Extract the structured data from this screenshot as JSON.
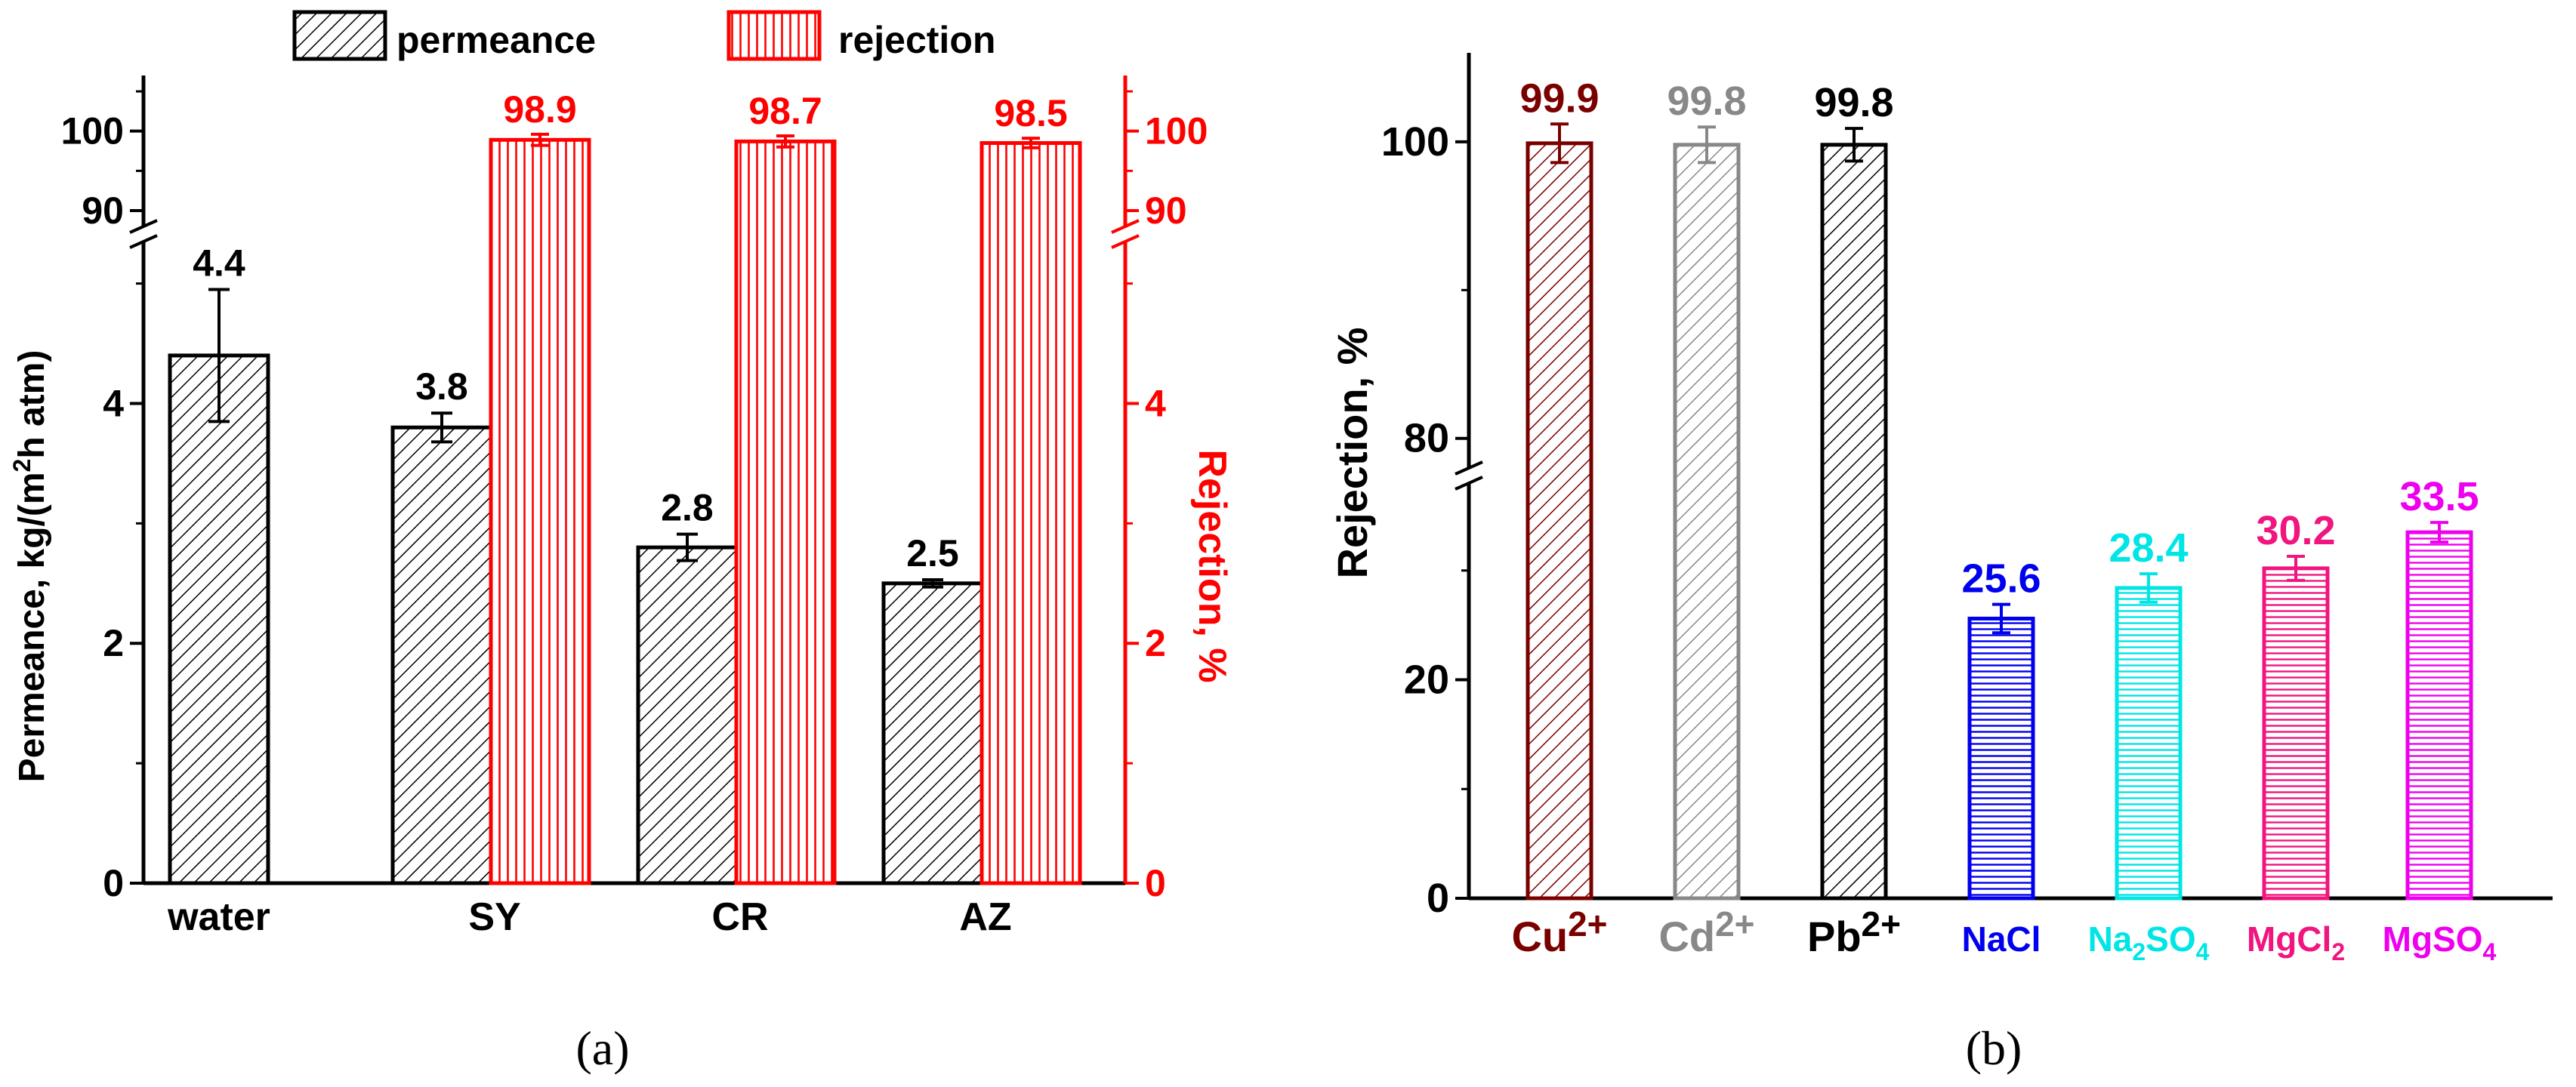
{
  "panel_a": {
    "caption": "(a)",
    "legend": [
      "permeance",
      "rejection"
    ],
    "chart_data": {
      "type": "bar",
      "categories": [
        "water",
        "SY",
        "CR",
        "AZ"
      ],
      "series": [
        {
          "name": "permeance",
          "axis": "left",
          "color": "#000000",
          "values": [
            4.4,
            3.8,
            2.8,
            2.5
          ],
          "errors": [
            0.55,
            0.12,
            0.11,
            0.03
          ]
        },
        {
          "name": "rejection",
          "axis": "right",
          "color": "#ff0000",
          "values": [
            null,
            98.9,
            98.7,
            98.5
          ],
          "errors": [
            null,
            0.7,
            0.7,
            0.6
          ]
        }
      ],
      "value_labels": {
        "permeance": [
          "4.4",
          "3.8",
          "2.8",
          "2.5"
        ],
        "rejection": [
          "",
          "98.9",
          "98.7",
          "98.5"
        ]
      },
      "ylabel_left": "Permeance, kg/(m2h atm)",
      "ylabel_right": "Rejection, %",
      "y_left_ticks": [
        "0",
        "2",
        "4",
        "90",
        "100"
      ],
      "y_right_ticks": [
        "0",
        "2",
        "4",
        "90",
        "100"
      ],
      "ylim_low": [
        0,
        5.35
      ],
      "ylim_high": [
        88,
        107
      ],
      "axis_break": true
    }
  },
  "panel_b": {
    "caption": "(b)",
    "chart_data": {
      "type": "bar",
      "categories": [
        "Cu2+",
        "Cd2+",
        "Pb2+",
        "NaCl",
        "Na2SO4",
        "MgCl2",
        "MgSO4"
      ],
      "category_labels": [
        {
          "base": "Cu",
          "script": "2+",
          "kind": "sup"
        },
        {
          "base": "Cd",
          "script": "2+",
          "kind": "sup"
        },
        {
          "base": "Pb",
          "script": "2+",
          "kind": "sup"
        },
        {
          "text": "NaCl"
        },
        {
          "parts": [
            "Na",
            "2",
            "SO",
            "4"
          ]
        },
        {
          "parts": [
            "MgCl",
            "2"
          ]
        },
        {
          "parts": [
            "MgSO",
            "4"
          ]
        }
      ],
      "values": [
        99.9,
        99.8,
        99.8,
        25.6,
        28.4,
        30.2,
        33.5
      ],
      "errors": [
        1.3,
        1.2,
        1.1,
        1.3,
        1.3,
        1.1,
        0.9
      ],
      "value_labels": [
        "99.9",
        "99.8",
        "99.8",
        "25.6",
        "28.4",
        "30.2",
        "33.5"
      ],
      "colors": [
        "#7a0000",
        "#888888",
        "#000000",
        "#0000ee",
        "#00e5e5",
        "#f0157f",
        "#ee00ee"
      ],
      "patterns": [
        "diag",
        "diag",
        "diag",
        "hline",
        "hline",
        "hline",
        "hline"
      ],
      "ylabel": "Rejection, %",
      "y_ticks": [
        "0",
        "20",
        "80",
        "100"
      ],
      "ylim_low": [
        0,
        38
      ],
      "ylim_high": [
        78,
        106
      ],
      "axis_break": true
    }
  }
}
